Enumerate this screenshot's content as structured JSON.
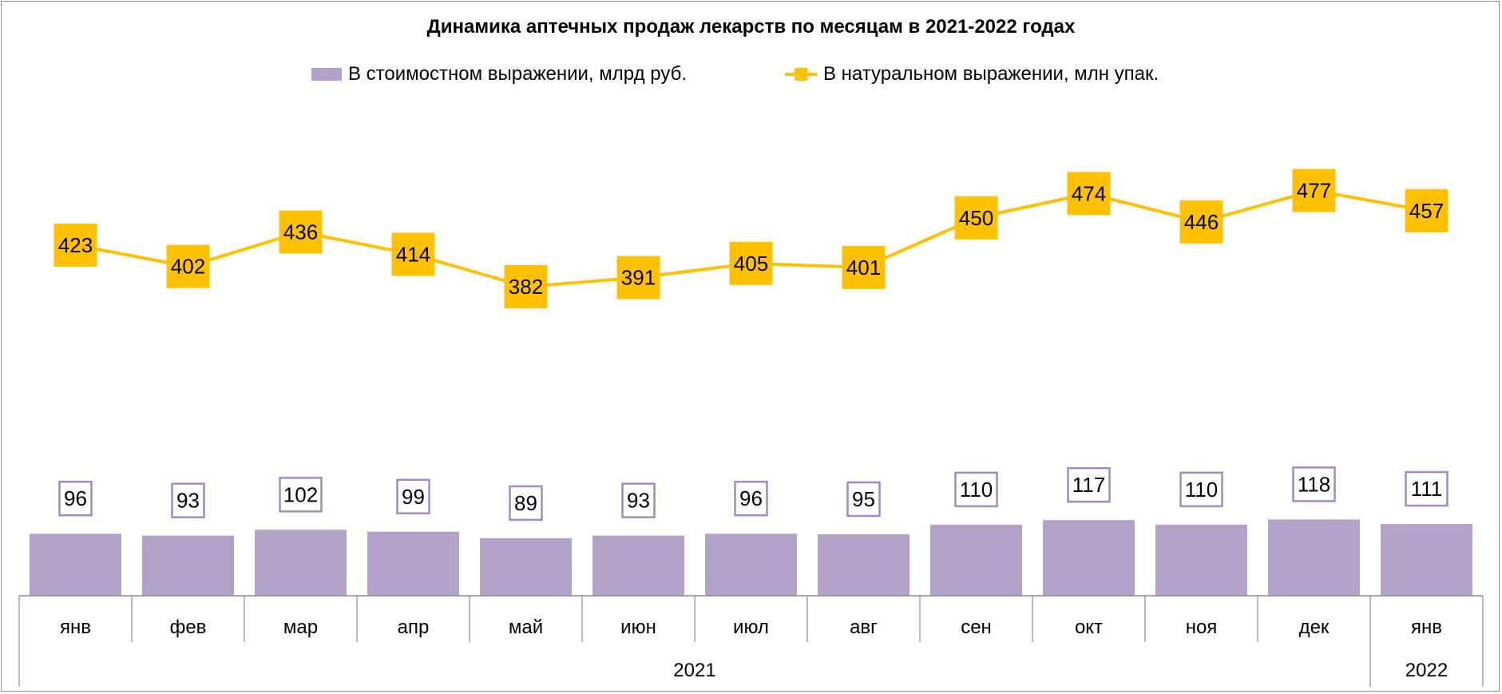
{
  "chart_data": {
    "type": "bar",
    "title": "Динамика аптечных продаж лекарств по месяцам в 2021-2022 годах",
    "categories": [
      "янв",
      "фев",
      "мар",
      "апр",
      "май",
      "июн",
      "июл",
      "авг",
      "сен",
      "окт",
      "ноя",
      "дек",
      "янв"
    ],
    "year_groups": [
      {
        "label": "2021",
        "count": 12
      },
      {
        "label": "2022",
        "count": 1
      }
    ],
    "series": [
      {
        "name": "В стоимостном выражении, млрд руб.",
        "type": "bar",
        "color": "#b3a2c7",
        "label_border": "#9e8bc0",
        "values": [
          96,
          93,
          102,
          99,
          89,
          93,
          96,
          95,
          110,
          117,
          110,
          118,
          111
        ]
      },
      {
        "name": "В натуральном выражении, млн упак.",
        "type": "line",
        "marker": "square",
        "color": "#ffc000",
        "values": [
          423,
          402,
          436,
          414,
          382,
          391,
          405,
          401,
          450,
          474,
          446,
          477,
          457
        ]
      }
    ],
    "legend_position": "top",
    "grid": false
  }
}
